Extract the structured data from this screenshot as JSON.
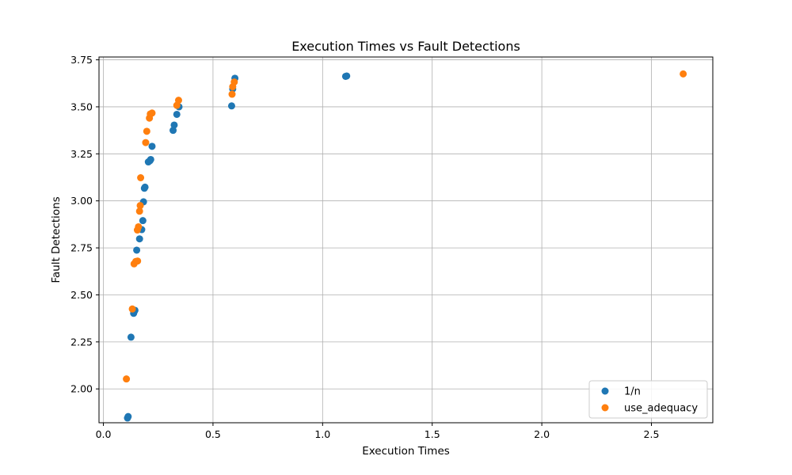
{
  "chart_data": {
    "type": "scatter",
    "title": "Execution Times vs Fault Detections",
    "xlabel": "Execution Times",
    "ylabel": "Fault Detections",
    "xlim": [
      -0.02,
      2.78
    ],
    "ylim": [
      1.82,
      3.765
    ],
    "x_ticks": [
      0.0,
      0.5,
      1.0,
      1.5,
      2.0,
      2.5
    ],
    "x_tick_labels": [
      "0.0",
      "0.5",
      "1.0",
      "1.5",
      "2.0",
      "2.5"
    ],
    "y_ticks": [
      2.0,
      2.25,
      2.5,
      2.75,
      3.0,
      3.25,
      3.5,
      3.75
    ],
    "y_tick_labels": [
      "2.00",
      "2.25",
      "2.50",
      "2.75",
      "3.00",
      "3.25",
      "3.50",
      "3.75"
    ],
    "grid": true,
    "legend_position": "bottom-right",
    "series": [
      {
        "name": "1/n",
        "color": "#1f77b4",
        "points": [
          {
            "x": 0.11,
            "y": 1.845
          },
          {
            "x": 0.113,
            "y": 1.853
          },
          {
            "x": 0.126,
            "y": 2.275
          },
          {
            "x": 0.138,
            "y": 2.402
          },
          {
            "x": 0.141,
            "y": 2.412
          },
          {
            "x": 0.144,
            "y": 2.418
          },
          {
            "x": 0.152,
            "y": 2.738
          },
          {
            "x": 0.165,
            "y": 2.798
          },
          {
            "x": 0.175,
            "y": 2.847
          },
          {
            "x": 0.18,
            "y": 2.895
          },
          {
            "x": 0.183,
            "y": 2.995
          },
          {
            "x": 0.187,
            "y": 3.067
          },
          {
            "x": 0.19,
            "y": 3.073
          },
          {
            "x": 0.205,
            "y": 3.207
          },
          {
            "x": 0.212,
            "y": 3.213
          },
          {
            "x": 0.216,
            "y": 3.22
          },
          {
            "x": 0.222,
            "y": 3.29
          },
          {
            "x": 0.318,
            "y": 3.375
          },
          {
            "x": 0.323,
            "y": 3.403
          },
          {
            "x": 0.335,
            "y": 3.46
          },
          {
            "x": 0.345,
            "y": 3.5
          },
          {
            "x": 0.585,
            "y": 3.505
          },
          {
            "x": 0.59,
            "y": 3.595
          },
          {
            "x": 0.6,
            "y": 3.652
          },
          {
            "x": 1.105,
            "y": 3.662
          },
          {
            "x": 1.11,
            "y": 3.664
          }
        ]
      },
      {
        "name": "use_adequacy",
        "color": "#ff7f0e",
        "points": [
          {
            "x": 0.105,
            "y": 2.053
          },
          {
            "x": 0.132,
            "y": 2.425
          },
          {
            "x": 0.14,
            "y": 2.665
          },
          {
            "x": 0.148,
            "y": 2.678
          },
          {
            "x": 0.156,
            "y": 2.68
          },
          {
            "x": 0.155,
            "y": 2.845
          },
          {
            "x": 0.16,
            "y": 2.862
          },
          {
            "x": 0.165,
            "y": 2.945
          },
          {
            "x": 0.168,
            "y": 2.975
          },
          {
            "x": 0.17,
            "y": 3.123
          },
          {
            "x": 0.193,
            "y": 3.31
          },
          {
            "x": 0.198,
            "y": 3.37
          },
          {
            "x": 0.21,
            "y": 3.44
          },
          {
            "x": 0.214,
            "y": 3.462
          },
          {
            "x": 0.222,
            "y": 3.467
          },
          {
            "x": 0.335,
            "y": 3.508
          },
          {
            "x": 0.343,
            "y": 3.535
          },
          {
            "x": 0.587,
            "y": 3.567
          },
          {
            "x": 0.59,
            "y": 3.607
          },
          {
            "x": 0.597,
            "y": 3.632
          },
          {
            "x": 2.645,
            "y": 3.675
          }
        ]
      }
    ]
  }
}
